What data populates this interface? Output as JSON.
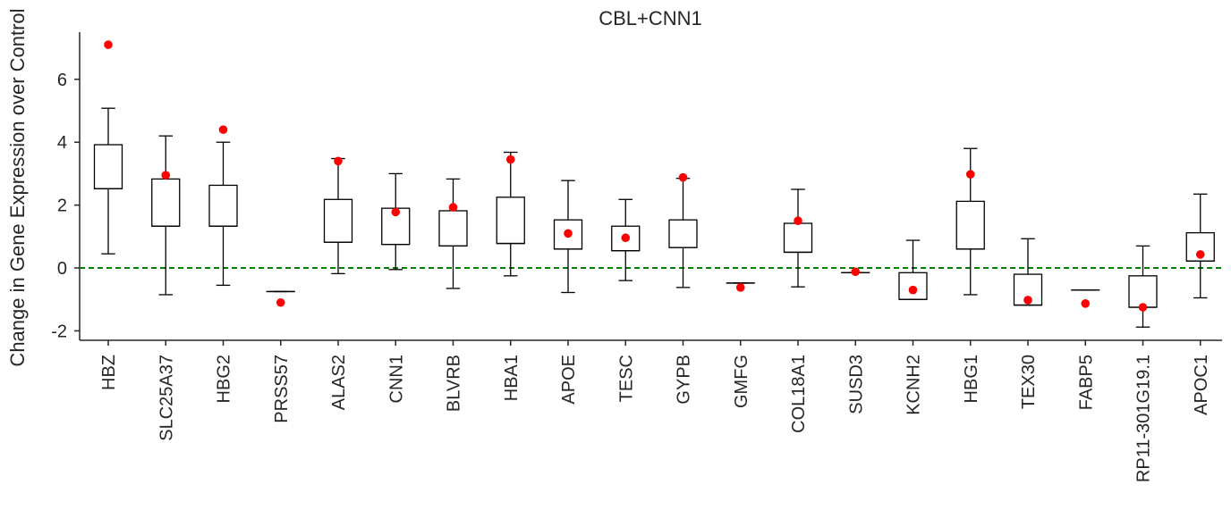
{
  "chart_data": {
    "type": "box",
    "title": "CBL+CNN1",
    "xlabel": "",
    "ylabel": "Change in Gene Expression over Control",
    "ylim": [
      -2.3,
      7.5
    ],
    "yticks": [
      -2,
      0,
      2,
      4,
      6
    ],
    "reference_line": {
      "y": 0,
      "color": "#008000",
      "style": "dashed"
    },
    "categories": [
      "HBZ",
      "SLC25A37",
      "HBG2",
      "PRSS57",
      "ALAS2",
      "CNN1",
      "BLVRB",
      "HBA1",
      "APOE",
      "TESC",
      "GYPB",
      "GMFG",
      "COL18A1",
      "SUSD3",
      "KCNH2",
      "HBG1",
      "TEX30",
      "FABP5",
      "RP11-301G19.1",
      "APOC1"
    ],
    "boxes": [
      {
        "whislo": 0.45,
        "q1": 2.52,
        "med": 2.52,
        "q3": 3.92,
        "whishi": 5.08
      },
      {
        "whislo": -0.85,
        "q1": 1.33,
        "med": 1.33,
        "q3": 2.83,
        "whishi": 4.2
      },
      {
        "whislo": -0.55,
        "q1": 1.33,
        "med": 1.33,
        "q3": 2.63,
        "whishi": 4.0
      },
      {
        "whislo": -0.75,
        "q1": -0.75,
        "med": -0.75,
        "q3": -0.75,
        "whishi": -0.75
      },
      {
        "whislo": -0.18,
        "q1": 0.82,
        "med": 0.82,
        "q3": 2.18,
        "whishi": 3.48
      },
      {
        "whislo": -0.05,
        "q1": 0.75,
        "med": 0.75,
        "q3": 1.9,
        "whishi": 3.0
      },
      {
        "whislo": -0.65,
        "q1": 0.7,
        "med": 0.7,
        "q3": 1.82,
        "whishi": 2.83
      },
      {
        "whislo": -0.25,
        "q1": 0.78,
        "med": 0.78,
        "q3": 2.25,
        "whishi": 3.68
      },
      {
        "whislo": -0.78,
        "q1": 0.6,
        "med": 0.6,
        "q3": 1.53,
        "whishi": 2.78
      },
      {
        "whislo": -0.4,
        "q1": 0.55,
        "med": 0.55,
        "q3": 1.33,
        "whishi": 2.18
      },
      {
        "whislo": -0.62,
        "q1": 0.65,
        "med": 0.65,
        "q3": 1.53,
        "whishi": 2.85
      },
      {
        "whislo": -0.48,
        "q1": -0.48,
        "med": -0.48,
        "q3": -0.48,
        "whishi": -0.48
      },
      {
        "whislo": -0.6,
        "q1": 0.5,
        "med": 0.5,
        "q3": 1.42,
        "whishi": 2.5
      },
      {
        "whislo": -0.15,
        "q1": -0.15,
        "med": -0.15,
        "q3": -0.15,
        "whishi": -0.15
      },
      {
        "whislo": -1.0,
        "q1": -1.0,
        "med": -1.0,
        "q3": -0.15,
        "whishi": 0.88
      },
      {
        "whislo": -0.85,
        "q1": 0.6,
        "med": 0.6,
        "q3": 2.12,
        "whishi": 3.8
      },
      {
        "whislo": -1.18,
        "q1": -1.18,
        "med": -1.18,
        "q3": -0.2,
        "whishi": 0.93
      },
      {
        "whislo": -0.7,
        "q1": -0.7,
        "med": -0.7,
        "q3": -0.7,
        "whishi": -0.7
      },
      {
        "whislo": -1.88,
        "q1": -1.25,
        "med": -1.25,
        "q3": -0.25,
        "whishi": 0.7
      },
      {
        "whislo": -0.95,
        "q1": 0.22,
        "med": 0.22,
        "q3": 1.12,
        "whishi": 2.35
      }
    ],
    "points": [
      7.1,
      2.95,
      4.4,
      -1.1,
      3.4,
      1.78,
      1.93,
      3.45,
      1.1,
      0.96,
      2.88,
      -0.62,
      1.5,
      -0.12,
      -0.7,
      2.98,
      -1.02,
      -1.13,
      -1.25,
      0.43
    ],
    "point_color": "#ff0000",
    "grid": false,
    "legend": "none"
  }
}
